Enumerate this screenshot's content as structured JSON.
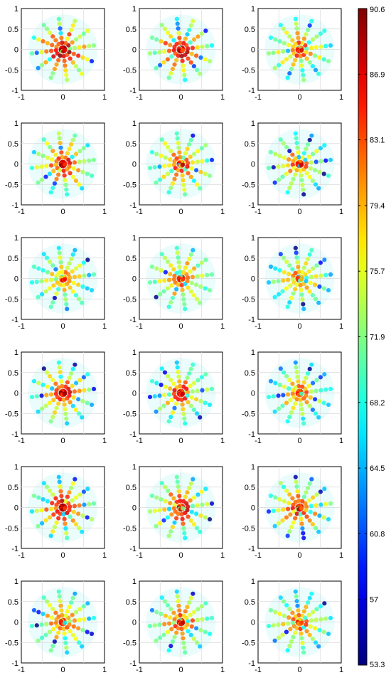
{
  "chart_data": {
    "type": "scatter",
    "layout": {
      "rows": 6,
      "cols": 3
    },
    "panels_count": 18,
    "panel_axes": {
      "xlim": [
        -1,
        1
      ],
      "ylim": [
        -1,
        1
      ],
      "x_tick_labels": [
        "-1",
        "0",
        "1"
      ],
      "y_tick_labels": [
        "1",
        "0.5",
        "0",
        "-0.5",
        "-1"
      ],
      "grid": true
    },
    "marker_pattern": {
      "description": "points along rays from the origin",
      "rays": 12,
      "points_per_ray": 7,
      "max_radius": 0.75
    },
    "colorbar": {
      "colormap": "jet",
      "min": 53.3,
      "max": 90.6,
      "tick_labels": [
        "90.6",
        "86.9",
        "83.1",
        "79.4",
        "75.7",
        "71.9",
        "68.2",
        "64.5",
        "60.8",
        "57",
        "53.3"
      ],
      "location": "right"
    },
    "panels": [
      {
        "id": 1,
        "seed": 11,
        "center_value": 90,
        "edge_value": 72
      },
      {
        "id": 2,
        "seed": 23,
        "center_value": 89,
        "edge_value": 71
      },
      {
        "id": 3,
        "seed": 37,
        "center_value": 84,
        "edge_value": 69
      },
      {
        "id": 4,
        "seed": 41,
        "center_value": 86,
        "edge_value": 70
      },
      {
        "id": 5,
        "seed": 53,
        "center_value": 85,
        "edge_value": 70
      },
      {
        "id": 6,
        "seed": 67,
        "center_value": 84,
        "edge_value": 67
      },
      {
        "id": 7,
        "seed": 71,
        "center_value": 83,
        "edge_value": 66
      },
      {
        "id": 8,
        "seed": 83,
        "center_value": 84,
        "edge_value": 69
      },
      {
        "id": 9,
        "seed": 97,
        "center_value": 82,
        "edge_value": 67
      },
      {
        "id": 10,
        "seed": 101,
        "center_value": 87,
        "edge_value": 68
      },
      {
        "id": 11,
        "seed": 113,
        "center_value": 86,
        "edge_value": 67
      },
      {
        "id": 12,
        "seed": 127,
        "center_value": 85,
        "edge_value": 66
      },
      {
        "id": 13,
        "seed": 131,
        "center_value": 88,
        "edge_value": 70
      },
      {
        "id": 14,
        "seed": 149,
        "center_value": 87,
        "edge_value": 70
      },
      {
        "id": 15,
        "seed": 157,
        "center_value": 86,
        "edge_value": 69
      },
      {
        "id": 16,
        "seed": 163,
        "center_value": 86,
        "edge_value": 68
      },
      {
        "id": 17,
        "seed": 173,
        "center_value": 85,
        "edge_value": 69
      },
      {
        "id": 18,
        "seed": 181,
        "center_value": 84,
        "edge_value": 67
      }
    ]
  }
}
